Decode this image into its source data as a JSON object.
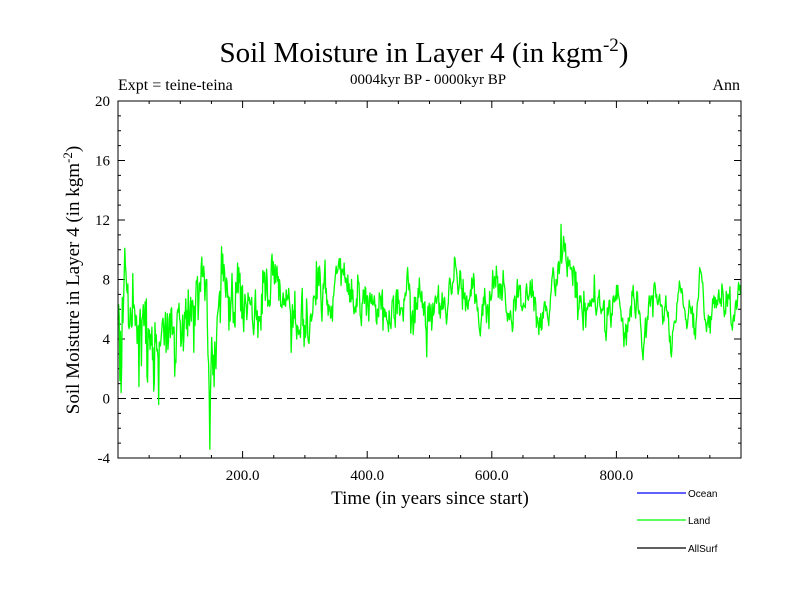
{
  "chart_data": {
    "type": "line",
    "title": "Soil Moisture in Layer 4 (in kgm",
    "title_superscript": "-2",
    "title_close": ")",
    "subtitle": "0004kyr BP - 0000kyr BP",
    "expt_label": "Expt = teine-teina",
    "period_label": "Ann",
    "xlabel": "Time (in years since start)",
    "ylabel": "Soil Moisture in Layer 4 (in kgm",
    "ylabel_superscript": "-2",
    "ylabel_close": ")",
    "xlim": [
      0,
      1000
    ],
    "ylim": [
      -4,
      20
    ],
    "x_ticks": [
      200,
      400,
      600,
      800
    ],
    "x_tick_labels": [
      "200.0",
      "400.0",
      "600.0",
      "800.0"
    ],
    "y_ticks": [
      -4,
      0,
      4,
      8,
      12,
      16,
      20
    ],
    "y_tick_labels": [
      "-4",
      "0",
      "4",
      "8",
      "12",
      "16",
      "20"
    ],
    "reference_line": 0,
    "legend_placement": "bottom-right",
    "series": [
      {
        "name": "Ocean",
        "color": "#0000ff",
        "values": []
      },
      {
        "name": "Land",
        "color": "#00ff00",
        "values": [
          5.3,
          6.3,
          5.5,
          1.2,
          4.5,
          0.4,
          2.2,
          6.8,
          5.1,
          6.5,
          8.2,
          10.1,
          9.0,
          8.4,
          7.4,
          7.1,
          7.7,
          4.9,
          4.7,
          4.9,
          6.1,
          5.6,
          4.8,
          4.9,
          8.4,
          6.1,
          6.3,
          6.0,
          4.9,
          5.6,
          5.5,
          3.7,
          4.6,
          4.9,
          0.8,
          5.2,
          6.0,
          4.9,
          2.2,
          5.3,
          5.5,
          6.3,
          4.9,
          5.4,
          6.5,
          3.7,
          6.7,
          1.5,
          1.1,
          4.7,
          4.1,
          4.6,
          3.3,
          4.3,
          3.6,
          4.8,
          2.6,
          3.4,
          0.5,
          1.1,
          5.1,
          3.8,
          4.3,
          3.2,
          3.3,
          2.7,
          -0.4,
          3.8,
          3.5,
          3.6,
          4.1,
          4.6,
          5.2,
          5.4,
          4.8,
          3.6,
          4.7,
          5.8,
          3.1,
          4.0,
          5.7,
          3.3,
          3.9,
          5.4,
          5.7,
          4.1,
          6.0,
          6.1,
          4.3,
          4.4,
          4.8,
          4.8,
          1.5,
          2.6,
          2.4,
          4.5,
          5.7,
          6.0,
          5.8,
          6.4,
          5.3,
          5.2,
          3.5,
          3.8,
          4.8,
          5.6,
          3.2,
          4.2,
          5.8,
          5.4,
          6.7,
          4.7,
          5.9,
          4.2,
          7.3,
          5.1,
          4.9,
          6.0,
          6.8,
          5.2,
          6.5,
          6.6,
          6.2,
          3.1,
          6.2,
          4.9,
          6.5,
          7.9,
          7.8,
          8.2,
          5.3,
          6.4,
          7.7,
          7.8,
          7.2,
          8.9,
          9.5,
          8.2,
          8.2,
          8.9,
          8.3,
          6.6,
          7.6,
          8.0,
          8.0,
          5.0,
          2.9,
          2.4,
          0.3,
          -3.4,
          0.1,
          2.2,
          4.1,
          3.1,
          1.6,
          2.9,
          0.8,
          3.8,
          2.6,
          2.0,
          4.2,
          5.5,
          5.8,
          6.1,
          6.8,
          7.2,
          5.1,
          7.5,
          10.2,
          8.4,
          9.7,
          7.9,
          9.0,
          8.5,
          7.5,
          6.8,
          8.1,
          7.8,
          6.8,
          6.9,
          4.6,
          6.8,
          5.2,
          6.2,
          6.8,
          8.4,
          6.7,
          5.1,
          5.8,
          5.0,
          4.8,
          7.8,
          7.1,
          7.2,
          9.1,
          7.1,
          8.8,
          7.8,
          8.4,
          5.9,
          7.5,
          5.4,
          7.6,
          5.4,
          4.5,
          6.0,
          7.0,
          6.5,
          6.3,
          5.3,
          5.9,
          7.1,
          6.6,
          6.8,
          6.4,
          6.3,
          6.5,
          6.8,
          5.3,
          4.9,
          4.3,
          4.8,
          6.3,
          7.3,
          5.6,
          5.3,
          5.9,
          4.1,
          5.5,
          5.5,
          5.2,
          5.5,
          4.6,
          7.0,
          5.7,
          8.6,
          7.8,
          8.5,
          8.4,
          6.6,
          7.1,
          8.7,
          8.1,
          6.2,
          6.5,
          6.6,
          6.2,
          6.3,
          7.6,
          9.3,
          9.7,
          8.3,
          9.2,
          8.4,
          7.7,
          9.0,
          7.8,
          8.5,
          8.9,
          7.9,
          8.2,
          6.6,
          8.0,
          7.6,
          6.2,
          6.3,
          6.1,
          6.6,
          7.1,
          6.3,
          6.7,
          6.3,
          6.2,
          7.3,
          6.6,
          6.9,
          6.7,
          7.4,
          6.7,
          6.1,
          5.8,
          3.1,
          4.5,
          6.3,
          4.8,
          5.9,
          5.4,
          7.2,
          5.1,
          4.9,
          4.0,
          4.9,
          4.8,
          4.3,
          4.4,
          4.6,
          4.1,
          5.2,
          6.6,
          7.4,
          4.9,
          5.3,
          3.5,
          4.9,
          4.1,
          4.4,
          6.7,
          5.8,
          4.2,
          3.8,
          3.7,
          4.5,
          5.5,
          5.7,
          5.2,
          5.5,
          5.7,
          6.8,
          6.9,
          6.8,
          6.8,
          6.3,
          9.2,
          6.7,
          8.0,
          8.8,
          7.6,
          8.9,
          8.4,
          7.1,
          5.9,
          5.2,
          6.6,
          7.7,
          7.4,
          8.3,
          9.3,
          7.1,
          7.4,
          6.3,
          6.6,
          5.6,
          6.3,
          5.9,
          6.2,
          5.4,
          5.5,
          6.2,
          5.2,
          6.8,
          6.9,
          7.5,
          7.9,
          8.4,
          8.9,
          8.4,
          8.5,
          8.7,
          9.1,
          9.4,
          8.7,
          9.4,
          7.6,
          8.5,
          8.7,
          8.6,
          8.3,
          9.1,
          8.2,
          7.8,
          8.1,
          7.9,
          7.2,
          8.3,
          7.0,
          7.7,
          6.5,
          7.3,
          6.5,
          8.0,
          6.7,
          7.3,
          6.2,
          5.7,
          5.9,
          6.2,
          5.8,
          6.7,
          6.2,
          8.3,
          7.8,
          7.8,
          6.8,
          5.6,
          5.4,
          4.9,
          6.4,
          6.4,
          7.3,
          7.2,
          6.4,
          7.5,
          7.4,
          5.6,
          6.9,
          6.9,
          6.0,
          5.2,
          6.7,
          7.1,
          6.5,
          6.4,
          7.0,
          6.3,
          6.3,
          6.5,
          6.9,
          6.2,
          6.3,
          5.2,
          5.0,
          6.0,
          6.0,
          5.5,
          7.1,
          6.9,
          6.8,
          6.0,
          6.8,
          7.3,
          4.6,
          6.1,
          5.5,
          6.0,
          5.5,
          5.8,
          5.3,
          5.2,
          5.0,
          4.5,
          5.9,
          5.1,
          5.0,
          4.7,
          5.8,
          6.6,
          6.6,
          6.9,
          5.4,
          5.4,
          4.8,
          6.9,
          7.3,
          5.7,
          7.3,
          6.4,
          6.6,
          5.6,
          5.7,
          6.1,
          6.1,
          6.1,
          5.8,
          5.2,
          6.7,
          6.6,
          7.1,
          6.9,
          7.2,
          8.3,
          8.8,
          8.0,
          7.3,
          7.7,
          7.0,
          4.4,
          5.1,
          5.6,
          5.9,
          4.3,
          5.0,
          6.8,
          5.1,
          6.8,
          6.0,
          6.4,
          6.0,
          7.4,
          6.8,
          8.1,
          7.2,
          6.9,
          6.5,
          7.2,
          6.1,
          6.4,
          5.6,
          6.3,
          6.5,
          4.9,
          4.6,
          2.8,
          5.2,
          6.2,
          5.2,
          6.4,
          5.2,
          5.8,
          6.3,
          4.6,
          5.2,
          6.4,
          5.6,
          5.8,
          6.5,
          6.9,
          6.6,
          6.4,
          6.8,
          6.9,
          7.6,
          5.7,
          6.4,
          5.4,
          6.2,
          6.0,
          7.1,
          6.0,
          6.1,
          6.7,
          6.8,
          6.1,
          5.7,
          5.0,
          5.4,
          6.1,
          6.4,
          7.5,
          8.1,
          8.0,
          7.5,
          7.0,
          7.1,
          7.8,
          7.8,
          8.0,
          9.5,
          9.4,
          8.9,
          8.7,
          8.3,
          7.6,
          7.0,
          7.3,
          7.7,
          8.6,
          8.5,
          7.4,
          7.4,
          6.0,
          8.0,
          6.8,
          6.7,
          7.1,
          5.9,
          6.6,
          6.9,
          6.2,
          6.0,
          6.6,
          6.6,
          6.8,
          7.3,
          6.9,
          8.1,
          7.4,
          7.6,
          8.4,
          8.0,
          6.4,
          6.5,
          7.0,
          6.7,
          5.9,
          6.1,
          5.4,
          4.8,
          4.5,
          4.2,
          5.0,
          5.5,
          6.3,
          5.6,
          6.8,
          6.3,
          7.4,
          6.6,
          6.3,
          5.1,
          6.1,
          6.3,
          5.7,
          4.7,
          7.2,
          6.9,
          6.6,
          6.7,
          7.2,
          8.6,
          7.6,
          7.4,
          8.2,
          8.0,
          7.5,
          8.9,
          8.1,
          8.2,
          6.8,
          7.6,
          7.7,
          6.7,
          7.7,
          7.6,
          6.6,
          7.1,
          8.6,
          7.8,
          7.6,
          7.3,
          6.4,
          5.8,
          5.8,
          5.2,
          5.7,
          5.7,
          5.3,
          5.7,
          5.9,
          5.3,
          5.1,
          4.5,
          4.8,
          6.6,
          6.7,
          6.9,
          5.9,
          6.1,
          7.1,
          8.0,
          6.8,
          6.9,
          7.6,
          7.4,
          7.6,
          6.2,
          6.2,
          5.9,
          6.1,
          6.4,
          6.2,
          6.2,
          6.1,
          7.3,
          7.7,
          7.1,
          6.7,
          6.6,
          6.9,
          7.1,
          7.9,
          7.0,
          6.8,
          8.0,
          6.9,
          7.2,
          5.9,
          6.8,
          6.8,
          6.3,
          4.8,
          5.5,
          5.2,
          5.0,
          4.3,
          5.4,
          4.8,
          5.7,
          4.6,
          4.7,
          5.8,
          5.4,
          6.1,
          6.5,
          6.5,
          5.9,
          6.2,
          6.0,
          5.5,
          5.3,
          4.9,
          5.7,
          6.0,
          6.9,
          7.2,
          8.0,
          8.3,
          8.8,
          8.5,
          7.8,
          7.3,
          6.9,
          8.0,
          7.6,
          7.8,
          9.0,
          9.2,
          8.4,
          9.0,
          9.4,
          11.7,
          9.1,
          9.6,
          9.9,
          10.9,
          10.5,
          9.9,
          10.4,
          9.3,
          9.0,
          8.2,
          9.5,
          8.9,
          9.2,
          9.3,
          8.7,
          8.8,
          8.8,
          8.4,
          7.6,
          8.9,
          8.8,
          8.6,
          6.8,
          8.5,
          6.8,
          7.8,
          5.3,
          6.0,
          6.0,
          6.9,
          6.5,
          6.9,
          6.4,
          5.9,
          5.4,
          4.6,
          7.2,
          5.9,
          6.4,
          4.8,
          5.8,
          6.1,
          6.0,
          6.4,
          6.3,
          6.2,
          6.6,
          6.3,
          6.2,
          6.7,
          6.7,
          6.5,
          6.5,
          8.3,
          6.7,
          6.0,
          5.6,
          5.9,
          6.2,
          6.8,
          6.8,
          7.3,
          6.2,
          6.1,
          5.7,
          6.0,
          5.9,
          6.0,
          6.5,
          6.6,
          4.5,
          4.5,
          3.9,
          4.7,
          6.1,
          5.6,
          5.9,
          6.6,
          6.6,
          5.5,
          4.8,
          5.7,
          5.6,
          6.7,
          6.9,
          6.5,
          6.5,
          6.9,
          6.6,
          7.6,
          6.7,
          7.6,
          7.0,
          6.8,
          6.5,
          6.1,
          5.9,
          5.2,
          5.3,
          5.4,
          4.6,
          3.5,
          4.4,
          4.1,
          5.0,
          3.6,
          4.9,
          4.5,
          5.4,
          5.4,
          5.2,
          6.0,
          6.2,
          5.5,
          7.2,
          6.9,
          7.6,
          6.8,
          6.6,
          5.8,
          5.4,
          6.2,
          7.2,
          7.1,
          6.1,
          5.7,
          5.9,
          5.7,
          5.0,
          4.5,
          3.5,
          3.1,
          2.6,
          3.5,
          3.8,
          4.6,
          5.4,
          4.1,
          4.8,
          5.5,
          5.3,
          6.3,
          6.9,
          6.6,
          6.2,
          6.9,
          6.7,
          6.9,
          5.5,
          7.0,
          7.7,
          7.8,
          7.5,
          6.8,
          7.0,
          6.5,
          6.3,
          6.5,
          6.8,
          7.0,
          6.3,
          6.2,
          6.3,
          6.2,
          5.0,
          5.5,
          5.2,
          6.1,
          6.2,
          6.9,
          5.9,
          5.9,
          5.5,
          5.8,
          4.7,
          3.8,
          4.2,
          3.1,
          2.8,
          3.4,
          4.5,
          4.6,
          5.0,
          5.2,
          5.2,
          5.1,
          5.3,
          6.4,
          6.5,
          7.1,
          7.2,
          7.9,
          7.6,
          7.3,
          7.1,
          7.4,
          7.1,
          6.4,
          6.1,
          6.1,
          5.9,
          5.3,
          5.3,
          4.7,
          4.9,
          5.4,
          5.8,
          6.6,
          6.2,
          6.1,
          5.7,
          5.9,
          6.2,
          4.8,
          5.7,
          4.3,
          4.7,
          4.0,
          5.1,
          5.5,
          6.4,
          6.6,
          6.8,
          7.9,
          8.8,
          8.6,
          8.5,
          8.3,
          7.8,
          7.8,
          6.9,
          5.8,
          5.3,
          5.3,
          5.0,
          4.5,
          5.0,
          5.2,
          5.6,
          4.8,
          5.5,
          4.4,
          5.5,
          5.3,
          5.9,
          6.7,
          6.4,
          6.9,
          6.1,
          6.8,
          6.6,
          6.1,
          6.6,
          6.3,
          6.9,
          7.3,
          6.6,
          6.4,
          6.7,
          6.2,
          7.7,
          7.4,
          7.0,
          6.1,
          5.5,
          5.9,
          5.7,
          7.2,
          6.8,
          6.2,
          7.0,
          6.9,
          6.7,
          7.5,
          5.7,
          5.0,
          4.9,
          4.6,
          5.3,
          5.6,
          5.2,
          5.7,
          6.4,
          6.6,
          6.0,
          6.3,
          7.2,
          7.8,
          7.3,
          7.6,
          7.0,
          7.6
        ]
      },
      {
        "name": "AllSurf",
        "color": "#000000",
        "values": []
      }
    ]
  }
}
